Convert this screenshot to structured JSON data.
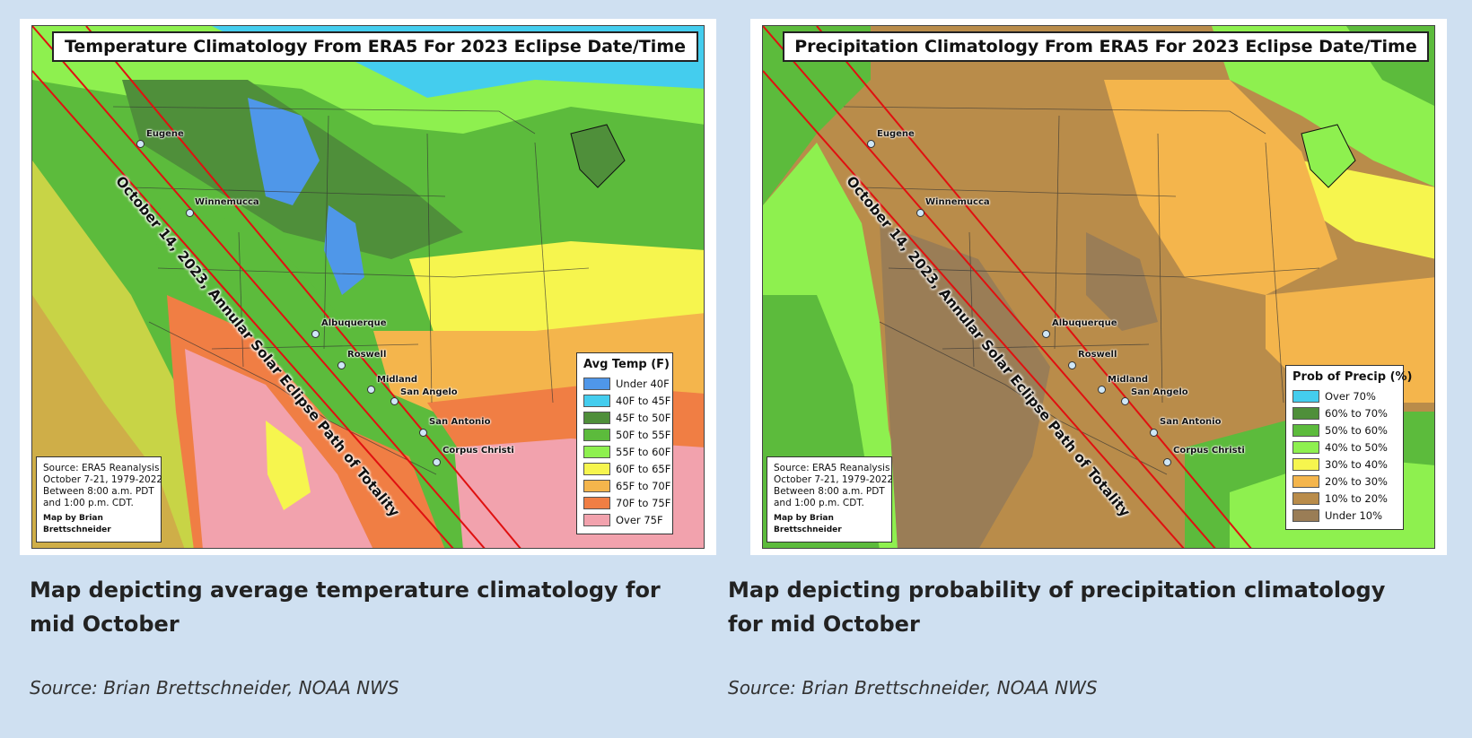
{
  "panels": [
    {
      "map_title": "Temperature Climatology From ERA5 For 2023 Eclipse Date/Time",
      "path_label": "October 14, 2023, Annular Solar Eclipse Path of Totality",
      "source_box": {
        "line1": "Source: ERA5 Reanalysis",
        "line2": "October 7-21, 1979-2022",
        "line3": "Between 8:00 a.m. PDT",
        "line4": "and 1:00 p.m. CDT.",
        "credit": "Map by Brian Brettschneider"
      },
      "legend": {
        "title": "Avg Temp (F)",
        "items": [
          {
            "label": "Under 40F",
            "color": "#4f97e9"
          },
          {
            "label": "40F to 45F",
            "color": "#44cdee"
          },
          {
            "label": "45F to 50F",
            "color": "#4f8f3a"
          },
          {
            "label": "50F to 55F",
            "color": "#5cbb3c"
          },
          {
            "label": "55F to 60F",
            "color": "#8ef04f"
          },
          {
            "label": "60F to 65F",
            "color": "#f6f54e"
          },
          {
            "label": "65F to 70F",
            "color": "#f4b54c"
          },
          {
            "label": "70F to 75F",
            "color": "#f07e44"
          },
          {
            "label": "Over 75F",
            "color": "#f2a2ad"
          }
        ]
      },
      "cities": [
        "Eugene",
        "Winnemucca",
        "Albuquerque",
        "Roswell",
        "Midland",
        "San Angelo",
        "San Antonio",
        "Corpus Christi"
      ],
      "caption": "Map depicting average temperature climatology for mid October",
      "source": "Source: Brian Brettschneider, NOAA NWS"
    },
    {
      "map_title": "Precipitation Climatology From ERA5 For 2023 Eclipse Date/Time",
      "path_label": "October 14, 2023, Annular Solar Eclipse Path of Totality",
      "source_box": {
        "line1": "Source: ERA5 Reanalysis",
        "line2": "October 7-21, 1979-2022",
        "line3": "Between 8:00 a.m. PDT",
        "line4": "and 1:00 p.m. CDT.",
        "credit": "Map by Brian Brettschneider"
      },
      "legend": {
        "title": "Prob of Precip (%)",
        "items": [
          {
            "label": "Over 70%",
            "color": "#44cdee"
          },
          {
            "label": "60% to 70%",
            "color": "#4f8f3a"
          },
          {
            "label": "50% to 60%",
            "color": "#5cbb3c"
          },
          {
            "label": "40% to 50%",
            "color": "#8ef04f"
          },
          {
            "label": "30% to 40%",
            "color": "#f6f54e"
          },
          {
            "label": "20% to 30%",
            "color": "#f4b54c"
          },
          {
            "label": "10% to 20%",
            "color": "#b98c4a"
          },
          {
            "label": "Under 10%",
            "color": "#9a7d56"
          }
        ]
      },
      "cities": [
        "Eugene",
        "Winnemucca",
        "Albuquerque",
        "Roswell",
        "Midland",
        "San Angelo",
        "San Antonio",
        "Corpus Christi"
      ],
      "caption": "Map depicting probability of precipitation climatology for mid October",
      "source": "Source: Brian Brettschneider, NOAA NWS"
    }
  ]
}
